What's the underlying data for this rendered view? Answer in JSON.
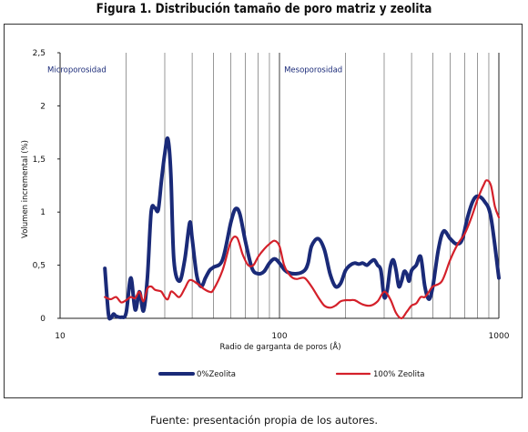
{
  "figure_title": "Figura 1. Distribución tamaño de poro matriz y zeolita",
  "caption": "Fuente: presentación propia de los autores.",
  "chart_data": {
    "type": "line",
    "xlabel": "Radio de garganta de poros (Å)",
    "ylabel": "Volumen incremental (%)",
    "xscale": "log",
    "xlim": [
      10,
      1000
    ],
    "ylim": [
      0,
      2.5
    ],
    "xticks": [
      10,
      100,
      1000
    ],
    "xtick_labels": [
      "10",
      "100",
      "1000"
    ],
    "yticks": [
      0,
      0.5,
      1,
      1.5,
      2,
      2.5
    ],
    "ytick_labels": [
      "0",
      "0,5",
      "1",
      "1,5",
      "2",
      "2,5"
    ],
    "grid": "vertical log minor",
    "legend_position": "bottom",
    "annotations": [
      {
        "text": "Microporosidad",
        "x": 10,
        "y": 2.3
      },
      {
        "text": "Mesoporosidad",
        "x": 105,
        "y": 2.3
      }
    ],
    "series": [
      {
        "name": "0%Zeolita",
        "color": "#1a2a78",
        "x": [
          16,
          16.6,
          17,
          17.5,
          18,
          19,
          20,
          21,
          22,
          23,
          24,
          25,
          26,
          27,
          28,
          29,
          30,
          31,
          32,
          33,
          35,
          37,
          39,
          40,
          42,
          44,
          46,
          48,
          50,
          55,
          60,
          63,
          66,
          70,
          75,
          80,
          85,
          90,
          95,
          100,
          105,
          110,
          120,
          130,
          135,
          140,
          150,
          160,
          170,
          180,
          190,
          200,
          210,
          220,
          230,
          240,
          250,
          260,
          270,
          280,
          290,
          300,
          310,
          320,
          330,
          340,
          350,
          360,
          370,
          380,
          390,
          400,
          420,
          440,
          460,
          480,
          500,
          530,
          560,
          600,
          640,
          680,
          720,
          760,
          800,
          860,
          920,
          1000
        ],
        "values": [
          0.47,
          0.05,
          0.0,
          0.04,
          0.02,
          0.01,
          0.05,
          0.38,
          0.08,
          0.25,
          0.07,
          0.38,
          1.0,
          1.04,
          1.02,
          1.3,
          1.55,
          1.69,
          1.35,
          0.55,
          0.35,
          0.55,
          0.9,
          0.75,
          0.4,
          0.3,
          0.38,
          0.45,
          0.48,
          0.55,
          0.9,
          1.03,
          0.98,
          0.72,
          0.47,
          0.42,
          0.44,
          0.52,
          0.56,
          0.52,
          0.46,
          0.43,
          0.42,
          0.45,
          0.52,
          0.68,
          0.75,
          0.65,
          0.42,
          0.3,
          0.33,
          0.45,
          0.5,
          0.52,
          0.51,
          0.52,
          0.5,
          0.53,
          0.55,
          0.5,
          0.45,
          0.2,
          0.27,
          0.48,
          0.55,
          0.45,
          0.3,
          0.35,
          0.44,
          0.42,
          0.35,
          0.45,
          0.5,
          0.58,
          0.3,
          0.18,
          0.3,
          0.65,
          0.82,
          0.75,
          0.7,
          0.74,
          0.95,
          1.1,
          1.15,
          1.1,
          0.95,
          0.38
        ]
      },
      {
        "name": "100% Zeolita",
        "color": "#d4202a",
        "x": [
          16,
          17,
          18,
          19,
          20,
          21,
          22,
          23,
          24,
          25,
          26,
          27,
          28,
          29,
          30,
          31,
          32,
          33,
          35,
          37,
          39,
          42,
          45,
          48,
          50,
          55,
          60,
          64,
          68,
          72,
          76,
          80,
          85,
          90,
          95,
          100,
          105,
          110,
          115,
          120,
          130,
          140,
          150,
          160,
          170,
          180,
          190,
          200,
          210,
          220,
          240,
          260,
          280,
          300,
          320,
          340,
          360,
          380,
          400,
          420,
          440,
          460,
          480,
          500,
          550,
          600,
          650,
          700,
          750,
          800,
          850,
          880,
          920,
          960,
          1000
        ],
        "values": [
          0.2,
          0.18,
          0.2,
          0.15,
          0.17,
          0.2,
          0.19,
          0.25,
          0.16,
          0.28,
          0.3,
          0.27,
          0.26,
          0.25,
          0.2,
          0.18,
          0.25,
          0.24,
          0.2,
          0.28,
          0.36,
          0.33,
          0.28,
          0.25,
          0.27,
          0.45,
          0.72,
          0.76,
          0.6,
          0.5,
          0.5,
          0.58,
          0.65,
          0.7,
          0.73,
          0.68,
          0.5,
          0.42,
          0.38,
          0.37,
          0.38,
          0.3,
          0.2,
          0.12,
          0.1,
          0.12,
          0.16,
          0.17,
          0.17,
          0.17,
          0.13,
          0.12,
          0.16,
          0.25,
          0.18,
          0.05,
          0.0,
          0.06,
          0.12,
          0.14,
          0.2,
          0.2,
          0.25,
          0.3,
          0.35,
          0.55,
          0.7,
          0.8,
          0.95,
          1.12,
          1.25,
          1.3,
          1.25,
          1.05,
          0.95
        ]
      }
    ]
  }
}
